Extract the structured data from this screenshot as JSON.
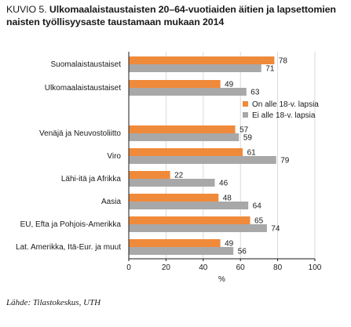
{
  "title_lead": "KUVIO 5.",
  "title_main": "Ulkomaalaistaustaisten 20–64-vuotiaiden äitien ja lapsettomien naisten työllisyysaste taustamaan mukaan 2014",
  "source": "Lähde: Tilastokeskus, UTH",
  "chart_data": {
    "type": "bar",
    "orientation": "horizontal",
    "categories": [
      "Suomalaistaustaiset",
      "Ulkomaalaistaustaiset",
      "Venäjä ja Neuvostoliitto",
      "Viro",
      "Lähi-itä ja Afrikka",
      "Aasia",
      "EU, Efta ja Pohjois-Amerikka",
      "Lat. Amerikka, Itä-Eur. ja muut"
    ],
    "series": [
      {
        "name": "On alle 18-v. lapsia",
        "color": "#f08a3b",
        "values": [
          78,
          49,
          57,
          61,
          22,
          48,
          65,
          49
        ]
      },
      {
        "name": "Ei alle 18-v. lapsia",
        "color": "#a8a8a8",
        "values": [
          71,
          63,
          59,
          79,
          46,
          64,
          74,
          56
        ]
      }
    ],
    "xlabel": "%",
    "xlim": [
      0,
      100
    ],
    "xticks": [
      0,
      20,
      40,
      60,
      80,
      100
    ],
    "legend_position": "right, below second group",
    "grid": "vertical"
  }
}
